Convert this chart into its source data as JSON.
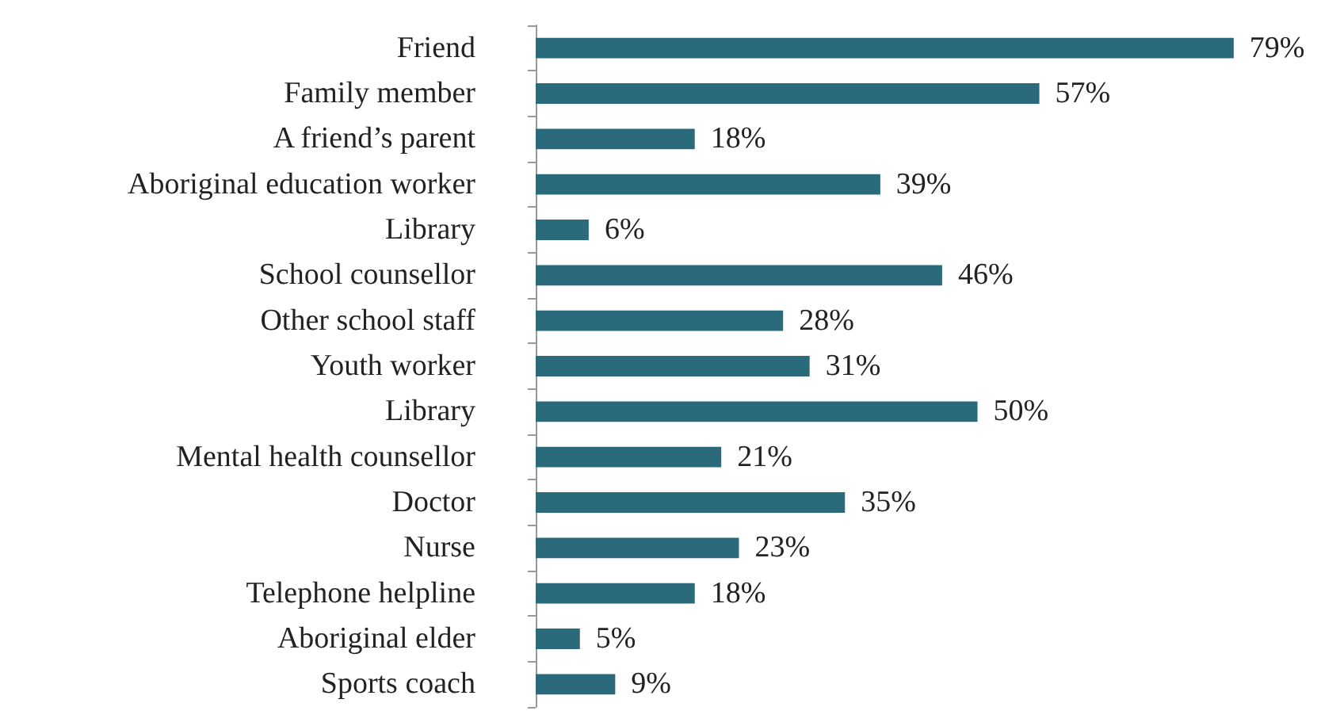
{
  "chart_data": {
    "type": "bar",
    "orientation": "horizontal",
    "color": "#2b6a7b",
    "categories": [
      "Friend",
      "Family member",
      "A friend’s parent",
      "Aboriginal education worker",
      "Library",
      "School counsellor",
      "Other school staff",
      "Youth worker",
      "Library",
      "Mental health counsellor",
      "Doctor",
      "Nurse",
      "Telephone helpline",
      "Aboriginal elder",
      "Sports coach"
    ],
    "values": [
      79,
      57,
      18,
      39,
      6,
      46,
      28,
      31,
      50,
      21,
      35,
      23,
      18,
      5,
      9
    ],
    "value_labels": [
      "79%",
      "57%",
      "18%",
      "39%",
      "6%",
      "46%",
      "28%",
      "31%",
      "50%",
      "21%",
      "35%",
      "23%",
      "18%",
      "5%",
      "9%"
    ]
  }
}
